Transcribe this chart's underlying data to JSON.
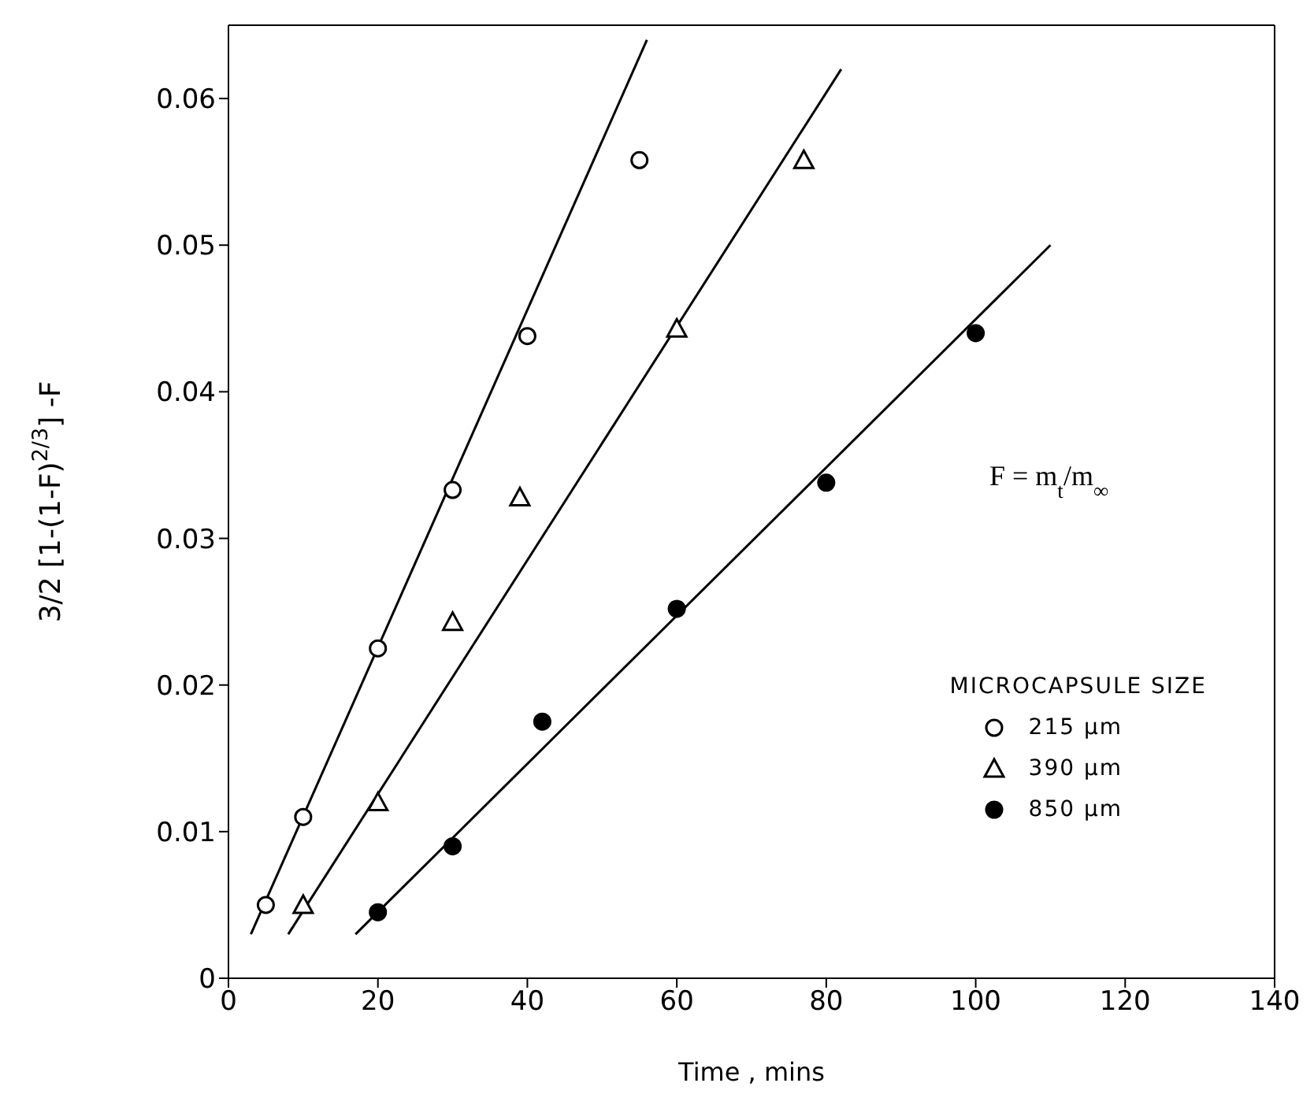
{
  "chart_data": {
    "type": "scatter",
    "xlabel": "Time , mins",
    "ylabel": "3/2 [1-(1-F)$^{2/3}$] -F",
    "legend_title": "MICROCAPSULE SIZE",
    "annotations": [
      "F = m$_{t}$/m$_{∞}$"
    ],
    "xlim": [
      0,
      140
    ],
    "xticks": [
      0,
      20,
      40,
      60,
      80,
      100,
      120,
      140
    ],
    "ylim": [
      0,
      0.065
    ],
    "yticks": [
      0,
      0.01,
      0.02,
      0.03,
      0.04,
      0.05,
      0.06
    ],
    "legend": "right",
    "series": [
      {
        "name": "215 μm",
        "marker": "circle",
        "color": "#ffffff",
        "x": [
          5,
          10,
          20,
          30,
          40,
          55
        ],
        "values": [
          0.005,
          0.011,
          0.0225,
          0.0333,
          0.0438,
          0.0558
        ]
      },
      {
        "name": "390 μm",
        "marker": "triangle",
        "color": "#ffffff",
        "x": [
          10,
          20,
          30,
          39,
          60,
          77
        ],
        "values": [
          0.005,
          0.012,
          0.0243,
          0.0328,
          0.0443,
          0.0558
        ]
      },
      {
        "name": "850 μm",
        "marker": "circle",
        "color": "#000000",
        "x": [
          20,
          30,
          42,
          60,
          80,
          100
        ],
        "values": [
          0.0045,
          0.009,
          0.0175,
          0.0252,
          0.0338,
          0.044
        ]
      },
      {
        "type": "line",
        "color": "#000000",
        "x": [
          3,
          56
        ],
        "values": [
          0.003,
          0.064
        ]
      },
      {
        "type": "line",
        "color": "#000000",
        "x": [
          8,
          82
        ],
        "values": [
          0.003,
          0.062
        ]
      },
      {
        "type": "line",
        "color": "#000000",
        "x": [
          17,
          110
        ],
        "values": [
          0.003,
          0.05
        ]
      }
    ]
  }
}
